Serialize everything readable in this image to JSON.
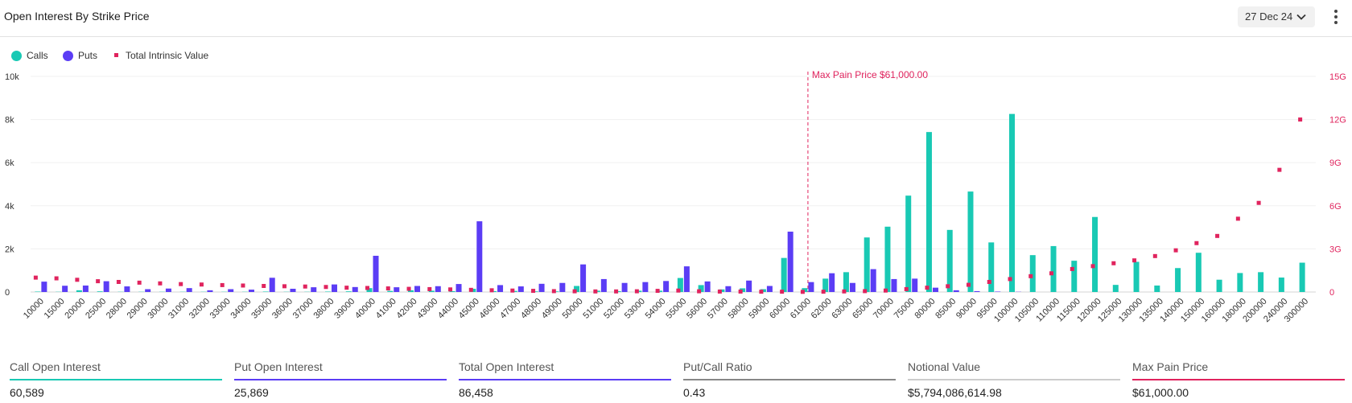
{
  "header": {
    "title": "Open Interest By Strike Price",
    "date_selector": "27 Dec 24"
  },
  "legend": [
    {
      "label": "Calls",
      "color": "#19c9b4",
      "shape": "circle"
    },
    {
      "label": "Puts",
      "color": "#5b3df5",
      "shape": "circle"
    },
    {
      "label": "Total Intrinsic Value",
      "color": "#e0245e",
      "shape": "square"
    }
  ],
  "chart_data": {
    "type": "bar",
    "title": "",
    "xlabel": "",
    "ylabel": "",
    "y2label": "",
    "categories": [
      "10000",
      "15000",
      "20000",
      "25000",
      "28000",
      "29000",
      "30000",
      "31000",
      "32000",
      "33000",
      "34000",
      "35000",
      "36000",
      "37000",
      "38000",
      "39000",
      "40000",
      "41000",
      "42000",
      "43000",
      "44000",
      "45000",
      "46000",
      "47000",
      "48000",
      "49000",
      "50000",
      "51000",
      "52000",
      "53000",
      "54000",
      "55000",
      "56000",
      "57000",
      "58000",
      "59000",
      "60000",
      "61000",
      "62000",
      "63000",
      "65000",
      "70000",
      "75000",
      "80000",
      "85000",
      "90000",
      "95000",
      "100000",
      "105000",
      "110000",
      "115000",
      "120000",
      "125000",
      "130000",
      "135000",
      "140000",
      "150000",
      "160000",
      "180000",
      "200000",
      "240000",
      "300000"
    ],
    "ylim": [
      0,
      10000
    ],
    "y2lim": [
      0,
      15
    ],
    "y_ticks": [
      "0",
      "2k",
      "4k",
      "6k",
      "8k",
      "10k"
    ],
    "y2_ticks": [
      "0",
      "3G",
      "6G",
      "9G",
      "12G",
      "15G"
    ],
    "grid": true,
    "legend_position": "top-left",
    "series": [
      {
        "name": "Calls",
        "color": "#19c9b4",
        "axis": "left",
        "values": [
          20,
          10,
          80,
          30,
          10,
          10,
          10,
          10,
          10,
          10,
          10,
          20,
          10,
          10,
          20,
          30,
          180,
          50,
          80,
          60,
          40,
          150,
          40,
          50,
          30,
          30,
          280,
          60,
          40,
          60,
          60,
          650,
          320,
          120,
          170,
          130,
          1580,
          180,
          620,
          920,
          2530,
          3030,
          4470,
          7420,
          2880,
          4660,
          2300,
          8260,
          1710,
          2130,
          1450,
          3480,
          330,
          1400,
          300,
          1110,
          1820,
          570,
          880,
          920,
          670,
          1360
        ]
      },
      {
        "name": "Puts",
        "color": "#5b3df5",
        "axis": "left",
        "values": [
          480,
          290,
          300,
          500,
          260,
          130,
          160,
          180,
          80,
          130,
          110,
          660,
          150,
          220,
          350,
          230,
          1680,
          220,
          280,
          270,
          370,
          3280,
          320,
          260,
          380,
          420,
          1280,
          600,
          420,
          460,
          510,
          1190,
          490,
          270,
          530,
          280,
          2800,
          460,
          870,
          420,
          1060,
          600,
          620,
          200,
          80,
          40,
          20,
          10,
          0,
          0,
          0,
          0,
          0,
          0,
          0,
          0,
          0,
          0,
          0,
          0,
          0,
          0
        ]
      },
      {
        "name": "Total Intrinsic Value",
        "color": "#e0245e",
        "axis": "right",
        "unit": "G",
        "values": [
          1.0,
          0.95,
          0.85,
          0.75,
          0.7,
          0.65,
          0.6,
          0.55,
          0.52,
          0.48,
          0.45,
          0.42,
          0.4,
          0.38,
          0.35,
          0.3,
          0.28,
          0.25,
          0.22,
          0.2,
          0.18,
          0.15,
          0.12,
          0.1,
          0.08,
          0.06,
          0.05,
          0.04,
          0.04,
          0.05,
          0.08,
          0.1,
          0.05,
          0.03,
          0.03,
          0.02,
          0.02,
          0.01,
          0.02,
          0.04,
          0.06,
          0.1,
          0.2,
          0.3,
          0.4,
          0.5,
          0.7,
          0.9,
          1.1,
          1.3,
          1.6,
          1.8,
          2.0,
          2.2,
          2.5,
          2.9,
          3.4,
          3.9,
          5.1,
          6.2,
          8.5,
          12.0
        ]
      }
    ],
    "annotations": [
      {
        "type": "vertical-line",
        "category": "61000",
        "label": "Max Pain Price $61,000.00",
        "color": "#e0245e"
      }
    ]
  },
  "stats": [
    {
      "label": "Call Open Interest",
      "value": "60,589",
      "color": "#19c9b4"
    },
    {
      "label": "Put Open Interest",
      "value": "25,869",
      "color": "#5b3df5"
    },
    {
      "label": "Total Open Interest",
      "value": "86,458",
      "color": "#5b3df5"
    },
    {
      "label": "Put/Call Ratio",
      "value": "0.43",
      "color": "#888888"
    },
    {
      "label": "Notional Value",
      "value": "$5,794,086,614.98",
      "color": "#cccccc"
    },
    {
      "label": "Max Pain Price",
      "value": "$61,000.00",
      "color": "#e0245e"
    }
  ]
}
